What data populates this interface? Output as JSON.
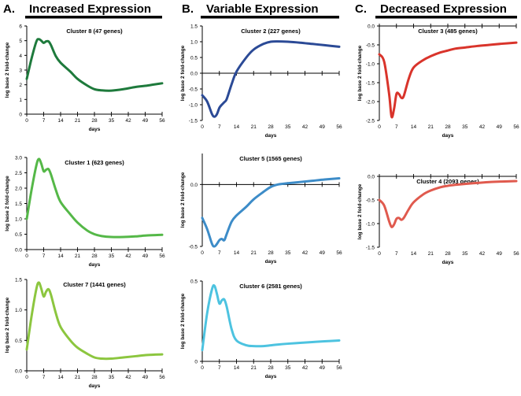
{
  "figure": {
    "columns": [
      {
        "letter": "A.",
        "title": "Increased Expression"
      },
      {
        "letter": "B.",
        "title": "Variable Expression"
      },
      {
        "letter": "C.",
        "title": "Decreased Expression"
      }
    ],
    "ylabel": "log base 2 fold-change",
    "xlabel": "days"
  },
  "chart_data": [
    {
      "type": "line",
      "id": "c8",
      "column": "A",
      "title": "Cluster 8 (47 genes)",
      "color": "#1e7a3c",
      "x": [
        0,
        2,
        4,
        5,
        6,
        7,
        8,
        9,
        10,
        12,
        14,
        18,
        21,
        25,
        28,
        31,
        35,
        40,
        45,
        50,
        56
      ],
      "values": [
        2.4,
        3.8,
        4.95,
        5.1,
        5.0,
        4.85,
        4.95,
        4.95,
        4.7,
        3.95,
        3.5,
        2.9,
        2.4,
        1.95,
        1.7,
        1.62,
        1.6,
        1.7,
        1.85,
        1.95,
        2.1
      ],
      "ylim": [
        0,
        6
      ],
      "yticks": [
        0,
        1,
        2,
        3,
        4,
        5,
        6
      ],
      "ytick_labels": [
        "0",
        "1",
        "2",
        "3",
        "4",
        "5",
        "6"
      ],
      "xticks": [
        0,
        7,
        14,
        21,
        28,
        35,
        42,
        49,
        56
      ],
      "xlim": [
        0,
        56
      ],
      "xlabel": "days"
    },
    {
      "type": "line",
      "id": "c1",
      "column": "A",
      "title": "Cluster 1 (623 genes)",
      "color": "#55b848",
      "x": [
        0,
        2,
        4,
        5,
        6,
        7,
        8,
        9,
        10,
        12,
        14,
        18,
        21,
        25,
        28,
        31,
        35,
        40,
        45,
        50,
        56
      ],
      "values": [
        1.0,
        1.95,
        2.75,
        2.95,
        2.8,
        2.55,
        2.6,
        2.62,
        2.45,
        1.95,
        1.55,
        1.15,
        0.88,
        0.62,
        0.5,
        0.44,
        0.41,
        0.41,
        0.43,
        0.46,
        0.48
      ],
      "ylim": [
        0,
        3
      ],
      "yticks": [
        0,
        0.5,
        1,
        1.5,
        2,
        2.5,
        3
      ],
      "ytick_labels": [
        "0.0",
        "0.5",
        "1.0",
        "1.5",
        "2.0",
        "2.5",
        "3.0"
      ],
      "xticks": [
        0,
        7,
        14,
        21,
        28,
        35,
        42,
        49,
        56
      ],
      "xlim": [
        0,
        56
      ],
      "xlabel": "days"
    },
    {
      "type": "line",
      "id": "c7",
      "column": "A",
      "title": "Cluster 7 (1441 genes)",
      "color": "#8cc63f",
      "x": [
        0,
        2,
        4,
        5,
        6,
        7,
        8,
        9,
        10,
        12,
        14,
        18,
        21,
        25,
        28,
        31,
        35,
        40,
        45,
        50,
        56
      ],
      "values": [
        0.35,
        0.9,
        1.35,
        1.45,
        1.35,
        1.22,
        1.3,
        1.34,
        1.25,
        0.95,
        0.72,
        0.5,
        0.38,
        0.28,
        0.22,
        0.2,
        0.2,
        0.22,
        0.24,
        0.26,
        0.27
      ],
      "ylim": [
        0,
        1.5
      ],
      "yticks": [
        0,
        0.5,
        1,
        1.5
      ],
      "ytick_labels": [
        "0.0",
        "0.5",
        "1.0",
        "1.5"
      ],
      "xticks": [
        0,
        7,
        14,
        21,
        28,
        35,
        42,
        49,
        56
      ],
      "xlim": [
        0,
        56
      ],
      "xlabel": "days"
    },
    {
      "type": "line",
      "id": "c2",
      "column": "B",
      "title": "Cluster 2 (227 genes)",
      "color": "#2b4a96",
      "x": [
        0,
        2,
        4,
        5,
        6,
        7,
        8,
        9,
        10,
        12,
        14,
        18,
        21,
        25,
        28,
        31,
        35,
        40,
        45,
        50,
        56
      ],
      "values": [
        -0.7,
        -0.9,
        -1.3,
        -1.38,
        -1.3,
        -1.1,
        -1.0,
        -0.92,
        -0.82,
        -0.35,
        0.05,
        0.5,
        0.75,
        0.93,
        1.0,
        1.01,
        1.0,
        0.97,
        0.93,
        0.89,
        0.84
      ],
      "ylim": [
        -1.5,
        1.5
      ],
      "yticks": [
        -1.5,
        -1,
        -0.5,
        0,
        0.5,
        1,
        1.5
      ],
      "ytick_labels": [
        "-1.5",
        "-1.0",
        "-0.5",
        "0.0",
        "0.5",
        "1.0",
        "1.5"
      ],
      "xticks": [
        0,
        7,
        14,
        21,
        28,
        35,
        42,
        49,
        56
      ],
      "xlim": [
        0,
        56
      ],
      "xlabel": "days"
    },
    {
      "type": "line",
      "id": "c5",
      "column": "B",
      "title": "Cluster 5 (1565 genes)",
      "color": "#3d8cc8",
      "x": [
        0,
        2,
        4,
        5,
        6,
        7,
        8,
        9,
        10,
        12,
        14,
        18,
        21,
        25,
        28,
        31,
        35,
        40,
        45,
        50,
        56
      ],
      "values": [
        -0.27,
        -0.36,
        -0.48,
        -0.5,
        -0.48,
        -0.45,
        -0.44,
        -0.45,
        -0.4,
        -0.3,
        -0.25,
        -0.18,
        -0.12,
        -0.06,
        -0.02,
        0.0,
        0.01,
        0.02,
        0.03,
        0.04,
        0.05
      ],
      "ylim": [
        -0.5,
        0.25
      ],
      "yticks": [
        -0.5,
        0
      ],
      "ytick_labels": [
        "-0.5",
        "0.0"
      ],
      "xticks": [
        0,
        7,
        14,
        21,
        28,
        35,
        42,
        49,
        56
      ],
      "xlim": [
        0,
        56
      ],
      "xlabel": "days"
    },
    {
      "type": "line",
      "id": "c6",
      "column": "B",
      "title": "Cluster 6 (2581 genes)",
      "color": "#4dc3e0",
      "x": [
        0,
        2,
        4,
        5,
        6,
        7,
        8,
        9,
        10,
        12,
        14,
        18,
        21,
        25,
        28,
        31,
        35,
        40,
        45,
        50,
        56
      ],
      "values": [
        0.07,
        0.3,
        0.45,
        0.47,
        0.42,
        0.36,
        0.38,
        0.385,
        0.34,
        0.2,
        0.13,
        0.1,
        0.095,
        0.095,
        0.1,
        0.105,
        0.11,
        0.115,
        0.12,
        0.125,
        0.13
      ],
      "ylim": [
        0,
        0.5
      ],
      "yticks": [
        0,
        0.5
      ],
      "ytick_labels": [
        "0",
        "0.5"
      ],
      "xticks": [
        0,
        7,
        14,
        21,
        28,
        35,
        42,
        49,
        56
      ],
      "xlim": [
        0,
        56
      ],
      "xlabel": "days"
    },
    {
      "type": "line",
      "id": "c3",
      "column": "C",
      "title": "Cluster 3 (485 genes)",
      "color": "#d9342b",
      "x": [
        0,
        2,
        4,
        5,
        6,
        7,
        8,
        9,
        10,
        12,
        14,
        18,
        21,
        25,
        28,
        31,
        35,
        40,
        45,
        50,
        56
      ],
      "values": [
        -0.75,
        -0.95,
        -1.8,
        -2.4,
        -2.2,
        -1.8,
        -1.8,
        -1.9,
        -1.85,
        -1.4,
        -1.1,
        -0.9,
        -0.8,
        -0.7,
        -0.65,
        -0.6,
        -0.57,
        -0.53,
        -0.5,
        -0.47,
        -0.44
      ],
      "ylim": [
        -2.5,
        0
      ],
      "yticks": [
        -2.5,
        -2,
        -1.5,
        -1,
        -0.5,
        0
      ],
      "ytick_labels": [
        "-2.5",
        "-2.0",
        "-1.5",
        "-1.0",
        "-0.5",
        "0.0"
      ],
      "xticks": [
        0,
        7,
        14,
        21,
        28,
        35,
        42,
        49,
        56
      ],
      "xlim": [
        0,
        56
      ],
      "xlabel": "days"
    },
    {
      "type": "line",
      "id": "c4",
      "column": "C",
      "title": "Cluster 4 (2093 genes)",
      "color": "#e05a4e",
      "x": [
        0,
        2,
        4,
        5,
        6,
        7,
        8,
        9,
        10,
        12,
        14,
        18,
        21,
        25,
        28,
        31,
        35,
        40,
        45,
        50,
        56
      ],
      "values": [
        -0.5,
        -0.62,
        -0.95,
        -1.07,
        -1.02,
        -0.9,
        -0.88,
        -0.92,
        -0.88,
        -0.7,
        -0.55,
        -0.38,
        -0.3,
        -0.23,
        -0.2,
        -0.18,
        -0.16,
        -0.14,
        -0.12,
        -0.11,
        -0.1
      ],
      "ylim": [
        -1.5,
        0
      ],
      "yticks": [
        -1.5,
        -1,
        -0.5,
        0
      ],
      "ytick_labels": [
        "-1.5",
        "-1.0",
        "-0.5",
        "0.0"
      ],
      "xticks": [
        0,
        7,
        14,
        21,
        28,
        35,
        42,
        49,
        56
      ],
      "xlim": [
        0,
        56
      ],
      "xlabel": "days"
    }
  ]
}
